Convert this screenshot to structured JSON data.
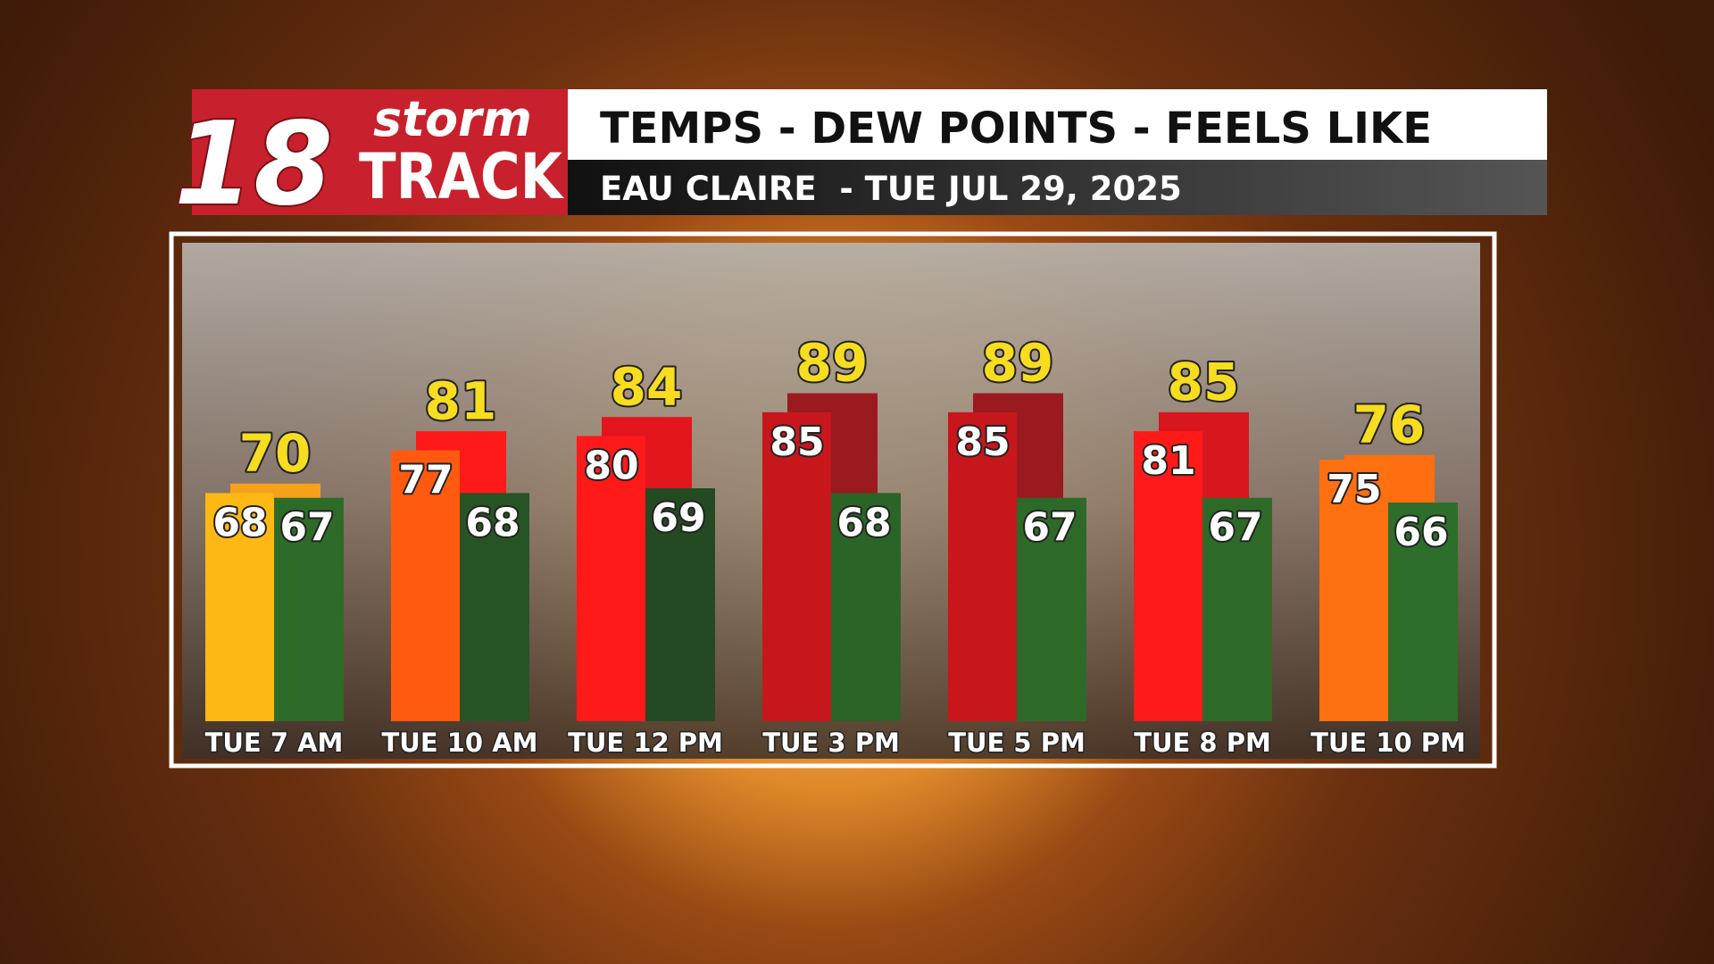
{
  "logo": {
    "number": "18",
    "word1": "storm",
    "word2": "TRACK"
  },
  "chart_data": {
    "type": "bar",
    "title": "TEMPS - DEW POINTS - FEELS LIKE",
    "subtitle": "EAU CLAIRE  - TUE JUL 29, 2025",
    "categories": [
      "TUE 7 AM",
      "TUE 10 AM",
      "TUE 12 PM",
      "TUE 3 PM",
      "TUE 5 PM",
      "TUE 8 PM",
      "TUE 10 PM"
    ],
    "ylim": [
      20,
      100
    ],
    "series": [
      {
        "values": [
          70,
          81,
          84,
          89,
          89,
          85,
          76
        ],
        "colors": [
          "#f6a11c",
          "#ff1a1a",
          "#e2161c",
          "#9a1a20",
          "#9a1a20",
          "#d8161e",
          "#ff6e10"
        ],
        "label_color": "#f7dd1f"
      },
      {
        "values": [
          68,
          77,
          80,
          85,
          85,
          81,
          75
        ],
        "colors": [
          "#fdb813",
          "#ff5a10",
          "#ff1a1a",
          "#c8161d",
          "#c8161d",
          "#ff1a1a",
          "#ff7010"
        ],
        "label_color": "#ffffff"
      },
      {
        "values": [
          67,
          68,
          69,
          68,
          67,
          67,
          66
        ],
        "colors": [
          "#2e6b28",
          "#265424",
          "#234a20",
          "#2a6426",
          "#2d6a28",
          "#2d6a28",
          "#2d6e2a"
        ],
        "label_color": "#ffffff"
      }
    ]
  }
}
